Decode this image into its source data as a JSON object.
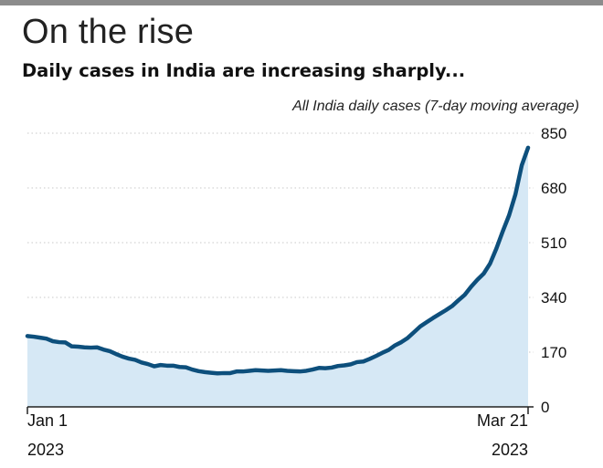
{
  "header": {
    "title": "On the rise",
    "subtitle": "Daily cases in India are increasing sharply..."
  },
  "colors": {
    "line": "#0d4f7c",
    "area": "#d6e8f5",
    "grid": "#c8c8c8",
    "top_bar": "#8c8c8c"
  },
  "chart_data": {
    "type": "area",
    "ylabel": "All India daily cases (7-day moving average)",
    "ylim": [
      0,
      850
    ],
    "yticks": [
      "0",
      "170",
      "340",
      "510",
      "680",
      "850"
    ],
    "ytick_values": [
      0,
      170,
      340,
      510,
      680,
      850
    ],
    "x_ticks": [
      {
        "label": "Jan 1",
        "year": "2023",
        "date": "2023-01-01"
      },
      {
        "label": "Mar 21",
        "year": "2023",
        "date": "2023-03-21"
      }
    ],
    "grid": true,
    "series": [
      {
        "x": [
          "2023-01-01",
          "2023-01-02",
          "2023-01-03",
          "2023-01-04",
          "2023-01-05",
          "2023-01-06",
          "2023-01-07",
          "2023-01-08",
          "2023-01-09",
          "2023-01-10",
          "2023-01-11",
          "2023-01-12",
          "2023-01-13",
          "2023-01-14",
          "2023-01-15",
          "2023-01-16",
          "2023-01-17",
          "2023-01-18",
          "2023-01-19",
          "2023-01-20",
          "2023-01-21",
          "2023-01-22",
          "2023-01-23",
          "2023-01-24",
          "2023-01-25",
          "2023-01-26",
          "2023-01-27",
          "2023-01-28",
          "2023-01-29",
          "2023-01-30",
          "2023-01-31",
          "2023-02-01",
          "2023-02-02",
          "2023-02-03",
          "2023-02-04",
          "2023-02-05",
          "2023-02-06",
          "2023-02-07",
          "2023-02-08",
          "2023-02-09",
          "2023-02-10",
          "2023-02-11",
          "2023-02-12",
          "2023-02-13",
          "2023-02-14",
          "2023-02-15",
          "2023-02-16",
          "2023-02-17",
          "2023-02-18",
          "2023-02-19",
          "2023-02-20",
          "2023-02-21",
          "2023-02-22",
          "2023-02-23",
          "2023-02-24",
          "2023-02-25",
          "2023-02-26",
          "2023-02-27",
          "2023-02-28",
          "2023-03-01",
          "2023-03-02",
          "2023-03-03",
          "2023-03-04",
          "2023-03-05",
          "2023-03-06",
          "2023-03-07",
          "2023-03-08",
          "2023-03-09",
          "2023-03-10",
          "2023-03-11",
          "2023-03-12",
          "2023-03-13",
          "2023-03-14",
          "2023-03-15",
          "2023-03-16",
          "2023-03-17",
          "2023-03-18",
          "2023-03-19",
          "2023-03-20",
          "2023-03-21"
        ],
        "values": [
          220,
          218,
          215,
          212,
          204,
          201,
          200,
          188,
          187,
          185,
          184,
          185,
          178,
          173,
          164,
          156,
          150,
          146,
          138,
          133,
          126,
          130,
          128,
          128,
          124,
          123,
          116,
          111,
          108,
          106,
          104,
          105,
          105,
          110,
          110,
          112,
          114,
          113,
          112,
          113,
          114,
          112,
          111,
          110,
          112,
          116,
          121,
          120,
          122,
          127,
          129,
          132,
          139,
          141,
          149,
          158,
          168,
          177,
          191,
          201,
          214,
          232,
          250,
          263,
          276,
          288,
          300,
          313,
          331,
          348,
          373,
          395,
          414,
          445,
          492,
          545,
          595,
          660,
          750,
          805
        ]
      }
    ]
  }
}
